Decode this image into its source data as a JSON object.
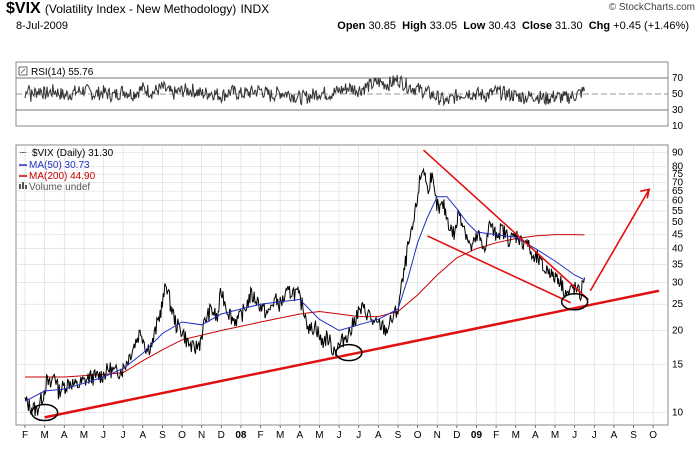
{
  "header": {
    "symbol": "$VIX",
    "name": "(Volatility Index - New Methodology)",
    "exchange": "INDX",
    "date": "8-Jul-2009",
    "copyright": "© StockCharts.com",
    "open_label": "Open",
    "open": "30.85",
    "high_label": "High",
    "high": "33.05",
    "low_label": "Low",
    "low": "30.43",
    "close_label": "Close",
    "close": "31.30",
    "chg_label": "Chg",
    "chg": "+0.45 (+1.46%)"
  },
  "colors": {
    "price": "#000000",
    "ma50": "#2030c0",
    "ma200": "#cc0000",
    "annotation": "#e01010",
    "grid": "#d8d8d8"
  },
  "chart_data": [
    {
      "type": "line",
      "title": "RSI(14) 55.76",
      "label_prefix": "RSI(14)",
      "value": "55.76",
      "ylim": [
        10,
        90
      ],
      "y_ticks": [
        10,
        30,
        50,
        70
      ],
      "reference_lines": [
        30,
        50,
        70
      ],
      "series": [
        {
          "name": "RSI(14)",
          "points": [
            [
              0,
              45
            ],
            [
              0.1,
              58
            ],
            [
              0.2,
              62
            ],
            [
              0.3,
              48
            ],
            [
              0.5,
              52
            ],
            [
              0.8,
              55
            ],
            [
              1,
              50
            ],
            [
              1.5,
              54
            ],
            [
              2,
              48
            ],
            [
              2.5,
              52
            ],
            [
              3,
              55
            ],
            [
              3.5,
              50
            ],
            [
              4,
              52
            ],
            [
              4.5,
              48
            ],
            [
              5,
              54
            ],
            [
              5.5,
              50
            ],
            [
              6,
              57
            ],
            [
              6.5,
              52
            ],
            [
              7,
              58
            ],
            [
              7.5,
              50
            ],
            [
              8,
              54
            ],
            [
              8.5,
              55
            ],
            [
              9,
              50
            ],
            [
              9.5,
              52
            ],
            [
              10,
              48
            ],
            [
              10.5,
              53
            ],
            [
              11,
              50
            ],
            [
              11.5,
              52
            ],
            [
              12,
              55
            ],
            [
              12.5,
              48
            ],
            [
              13,
              52
            ],
            [
              13.5,
              50
            ],
            [
              14,
              45
            ],
            [
              14.5,
              47
            ],
            [
              15,
              52
            ],
            [
              15.5,
              50
            ],
            [
              16,
              54
            ],
            [
              16.5,
              58
            ],
            [
              17,
              55
            ],
            [
              17.5,
              60
            ],
            [
              18,
              65
            ],
            [
              18.5,
              62
            ],
            [
              19,
              68
            ],
            [
              19.5,
              60
            ],
            [
              20,
              56
            ],
            [
              20.5,
              52
            ],
            [
              21,
              46
            ],
            [
              21.5,
              40
            ],
            [
              22,
              48
            ],
            [
              22.5,
              52
            ],
            [
              23,
              50
            ],
            [
              23.5,
              48
            ],
            [
              24,
              53
            ],
            [
              24.5,
              50
            ],
            [
              25,
              48
            ],
            [
              25.5,
              46
            ],
            [
              26,
              48
            ],
            [
              26.5,
              44
            ],
            [
              27,
              47
            ],
            [
              27.5,
              45
            ],
            [
              28,
              48
            ],
            [
              28.5,
              54
            ]
          ]
        }
      ]
    },
    {
      "type": "line",
      "title": "$VIX (Daily) 31.30",
      "yscale": "log",
      "ylim": [
        9,
        96
      ],
      "y_ticks": [
        10,
        15,
        20,
        25,
        30,
        35,
        40,
        45,
        50,
        55,
        60,
        65,
        70,
        75,
        80,
        90
      ],
      "x_ticks": [
        "F",
        "M",
        "A",
        "M",
        "J",
        "J",
        "A",
        "S",
        "O",
        "N",
        "D",
        "08",
        "F",
        "M",
        "A",
        "M",
        "J",
        "J",
        "A",
        "S",
        "O",
        "N",
        "D",
        "09",
        "F",
        "M",
        "A",
        "M",
        "J",
        "J",
        "A",
        "S",
        "O"
      ],
      "legend": [
        {
          "name": "$VIX (Daily) 31.30",
          "color": "#000000",
          "marker": "bars"
        },
        {
          "name": "MA(50) 30.73",
          "color": "#2030c0",
          "marker": "line"
        },
        {
          "name": "MA(200) 44.90",
          "color": "#cc0000",
          "marker": "line"
        },
        {
          "name": "Volume undef",
          "color": "#555555",
          "marker": "volume"
        }
      ],
      "series": [
        {
          "name": "$VIX (Daily)",
          "points": [
            [
              0,
              11
            ],
            [
              0.3,
              10.5
            ],
            [
              0.6,
              10.2
            ],
            [
              0.9,
              11.5
            ],
            [
              1.1,
              13
            ],
            [
              1.3,
              12.5
            ],
            [
              1.5,
              14
            ],
            [
              1.7,
              12
            ],
            [
              2,
              12.5
            ],
            [
              2.3,
              13
            ],
            [
              2.6,
              12.5
            ],
            [
              3,
              13
            ],
            [
              3.3,
              13.5
            ],
            [
              3.6,
              13.5
            ],
            [
              4,
              13.8
            ],
            [
              4.3,
              14.5
            ],
            [
              4.6,
              14
            ],
            [
              5,
              14.5
            ],
            [
              5.3,
              16
            ],
            [
              5.6,
              18
            ],
            [
              5.9,
              20
            ],
            [
              6.2,
              17
            ],
            [
              6.5,
              18
            ],
            [
              6.8,
              22
            ],
            [
              7,
              25
            ],
            [
              7.2,
              30
            ],
            [
              7.4,
              25
            ],
            [
              7.7,
              21
            ],
            [
              8,
              20
            ],
            [
              8.3,
              18
            ],
            [
              8.6,
              17
            ],
            [
              8.9,
              18
            ],
            [
              9.2,
              22
            ],
            [
              9.5,
              24
            ],
            [
              9.8,
              22
            ],
            [
              10,
              28
            ],
            [
              10.3,
              24
            ],
            [
              10.6,
              22
            ],
            [
              10.9,
              22
            ],
            [
              11.2,
              24
            ],
            [
              11.5,
              27
            ],
            [
              11.8,
              26
            ],
            [
              12.1,
              24
            ],
            [
              12.4,
              23
            ],
            [
              12.7,
              26
            ],
            [
              13,
              25
            ],
            [
              13.3,
              27
            ],
            [
              13.6,
              28
            ],
            [
              13.9,
              27
            ],
            [
              14.2,
              24
            ],
            [
              14.5,
              20
            ],
            [
              14.8,
              21
            ],
            [
              15.1,
              18
            ],
            [
              15.4,
              19
            ],
            [
              15.7,
              17
            ],
            [
              16,
              17.5
            ],
            [
              16.3,
              19
            ],
            [
              16.6,
              20
            ],
            [
              16.9,
              23
            ],
            [
              17.2,
              24
            ],
            [
              17.5,
              23
            ],
            [
              17.8,
              21
            ],
            [
              18.1,
              21
            ],
            [
              18.4,
              20
            ],
            [
              18.7,
              22
            ],
            [
              19,
              24
            ],
            [
              19.3,
              32
            ],
            [
              19.5,
              40
            ],
            [
              19.7,
              45
            ],
            [
              19.9,
              55
            ],
            [
              20.1,
              70
            ],
            [
              20.3,
              80
            ],
            [
              20.5,
              65
            ],
            [
              20.7,
              75
            ],
            [
              20.9,
              60
            ],
            [
              21.1,
              55
            ],
            [
              21.3,
              58
            ],
            [
              21.5,
              52
            ],
            [
              21.7,
              47
            ],
            [
              21.9,
              45
            ],
            [
              22.1,
              55
            ],
            [
              22.3,
              50
            ],
            [
              22.5,
              45
            ],
            [
              22.7,
              40
            ],
            [
              22.9,
              42
            ],
            [
              23.1,
              45
            ],
            [
              23.3,
              40
            ],
            [
              23.5,
              42
            ],
            [
              23.7,
              50
            ],
            [
              23.9,
              45
            ],
            [
              24.1,
              46
            ],
            [
              24.3,
              47
            ],
            [
              24.5,
              45
            ],
            [
              24.7,
              43
            ],
            [
              24.9,
              44
            ],
            [
              25.1,
              45
            ],
            [
              25.3,
              42
            ],
            [
              25.5,
              43
            ],
            [
              25.7,
              40
            ],
            [
              25.9,
              36
            ],
            [
              26.1,
              37
            ],
            [
              26.3,
              35
            ],
            [
              26.5,
              33
            ],
            [
              26.7,
              34
            ],
            [
              26.9,
              31
            ],
            [
              27.1,
              32
            ],
            [
              27.3,
              30
            ],
            [
              27.5,
              28
            ],
            [
              27.7,
              27
            ],
            [
              27.9,
              29
            ],
            [
              28.1,
              28
            ],
            [
              28.3,
              27
            ],
            [
              28.5,
              31.3
            ]
          ]
        },
        {
          "name": "MA(50)",
          "points": [
            [
              0,
              11
            ],
            [
              1,
              12
            ],
            [
              2,
              12.2
            ],
            [
              3,
              12.8
            ],
            [
              4,
              13.5
            ],
            [
              5,
              14.5
            ],
            [
              6,
              16.5
            ],
            [
              7,
              19.5
            ],
            [
              8,
              21.5
            ],
            [
              9,
              21
            ],
            [
              10,
              23
            ],
            [
              11,
              24
            ],
            [
              12,
              25
            ],
            [
              13,
              25.5
            ],
            [
              14,
              26
            ],
            [
              15,
              22
            ],
            [
              16,
              20
            ],
            [
              17,
              21
            ],
            [
              18,
              22
            ],
            [
              19,
              24
            ],
            [
              19.5,
              31
            ],
            [
              20,
              42
            ],
            [
              20.5,
              52
            ],
            [
              21,
              62
            ],
            [
              21.5,
              62
            ],
            [
              22,
              56
            ],
            [
              22.5,
              50
            ],
            [
              23,
              46
            ],
            [
              24,
              45
            ],
            [
              25,
              44
            ],
            [
              26,
              40
            ],
            [
              27,
              36
            ],
            [
              28,
              32
            ],
            [
              28.5,
              30.73
            ]
          ]
        },
        {
          "name": "MA(200)",
          "points": [
            [
              0,
              13.5
            ],
            [
              2,
              13.5
            ],
            [
              4,
              13.8
            ],
            [
              5,
              14
            ],
            [
              6,
              15.5
            ],
            [
              7,
              17
            ],
            [
              8,
              18.5
            ],
            [
              10,
              20
            ],
            [
              12,
              21.5
            ],
            [
              14,
              23
            ],
            [
              15,
              23.5
            ],
            [
              16,
              23
            ],
            [
              17,
              22.5
            ],
            [
              18,
              22.5
            ],
            [
              19,
              23.5
            ],
            [
              20,
              27
            ],
            [
              21,
              32
            ],
            [
              22,
              37
            ],
            [
              23,
              40
            ],
            [
              24,
              42
            ],
            [
              25,
              43.5
            ],
            [
              26,
              44.5
            ],
            [
              27,
              45
            ],
            [
              28,
              45
            ],
            [
              28.5,
              44.9
            ]
          ]
        }
      ],
      "annotations": {
        "support_line": [
          [
            1,
            9.6
          ],
          [
            32.3,
            28
          ]
        ],
        "upper_wedge_line": [
          [
            20.3,
            92
          ],
          [
            28.7,
            26
          ]
        ],
        "lower_wedge_line": [
          [
            20.5,
            44.5
          ],
          [
            27.8,
            25.3
          ]
        ],
        "forecast_arrow": [
          [
            28.8,
            28
          ],
          [
            31.8,
            66
          ]
        ],
        "circles": [
          [
            1,
            10
          ],
          [
            16.5,
            16.6
          ],
          [
            28,
            25.5
          ]
        ]
      }
    }
  ]
}
